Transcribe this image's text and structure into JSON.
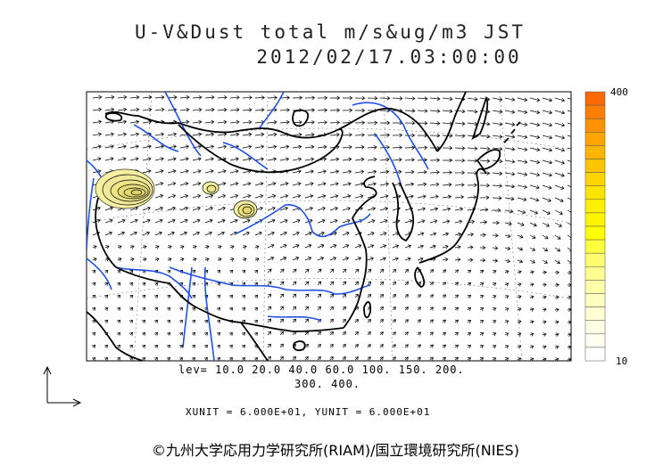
{
  "title": {
    "line1": "U-V&Dust total m/s&ug/m3 JST",
    "line2": "2012/02/17.03:00:00"
  },
  "colorbar": {
    "max_label": "400",
    "min_label": "10",
    "colors": [
      "#ff6a00",
      "#ff7e00",
      "#ff9200",
      "#ffa400",
      "#ffb400",
      "#ffc400",
      "#ffd400",
      "#ffe400",
      "#fff000",
      "#fff400",
      "#ffff00",
      "#ffff40",
      "#ffff70",
      "#ffff90",
      "#ffffaa",
      "#ffffc0",
      "#ffffd4",
      "#ffffe4",
      "#fffff0",
      "#ffffff"
    ]
  },
  "contour_levels": {
    "line1": "lev= 10.0 20.0 40.0 60.0 100. 150. 200.",
    "line2": "300. 400."
  },
  "units": {
    "text": "XUNIT = 6.000E+01, YUNIT = 6.000E+01"
  },
  "credit": {
    "text": "©九州大学応用力学研究所(RIAM)/国立環境研究所(NIES)"
  },
  "colors": {
    "river": "#1f4fe6",
    "coast": "#000000",
    "dust_fill": "#f7f0a0"
  }
}
